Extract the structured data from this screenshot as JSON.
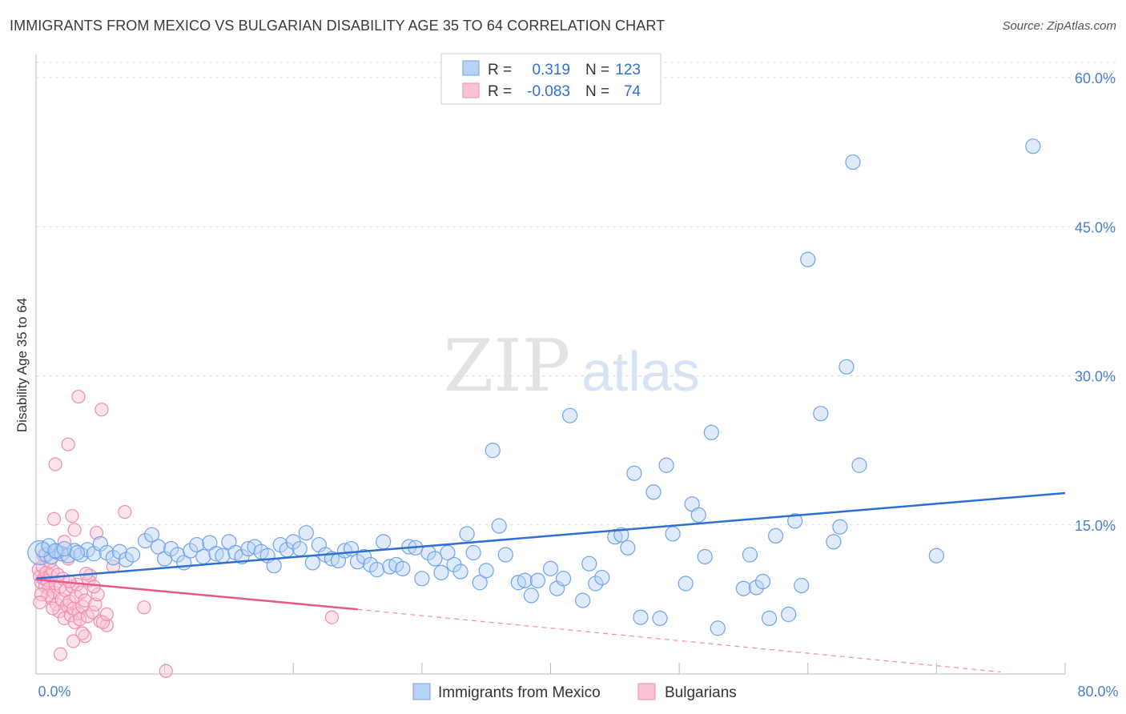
{
  "title": "IMMIGRANTS FROM MEXICO VS BULGARIAN DISABILITY AGE 35 TO 64 CORRELATION CHART",
  "source": "Source: ZipAtlas.com",
  "watermark": {
    "zip": "ZIP",
    "atlas": "atlas"
  },
  "colors": {
    "blue": "#6fa3e8",
    "blue_fill": "#b8d2f5",
    "blue_line": "#2f6fd0",
    "pink": "#f08cb0",
    "pink_fill": "#f9c3d5",
    "pink_line": "#e8588a",
    "axis_label": "#4a7fd0",
    "grid": "#dddddd"
  },
  "legend": {
    "rows": [
      {
        "r_label": "R =",
        "r_value": "0.319",
        "n_label": "N =",
        "n_value": "123"
      },
      {
        "r_label": "R =",
        "r_value": "-0.083",
        "n_label": "N =",
        "n_value": "74"
      }
    ]
  },
  "chart_data": {
    "type": "scatter",
    "title": "IMMIGRANTS FROM MEXICO VS BULGARIAN DISABILITY AGE 35 TO 64 CORRELATION CHART",
    "xlabel": "",
    "ylabel": "Disability Age 35 to 64",
    "xlim": [
      0,
      80
    ],
    "ylim": [
      0,
      60
    ],
    "x_tick_labels": [
      "0.0%",
      "80.0%"
    ],
    "y_ticks": [
      15,
      30,
      45,
      60
    ],
    "y_tick_labels": [
      "15.0%",
      "30.0%",
      "45.0%",
      "60.0%"
    ],
    "grid": true,
    "legend_position": "top-center",
    "series": [
      {
        "name": "Immigrants from Mexico",
        "color": "#6fa3e8",
        "r": 0.319,
        "n": 123,
        "trend": {
          "x": [
            0,
            80
          ],
          "y": [
            9.6,
            18.2
          ]
        },
        "points": [
          [
            0.3,
            12.2
          ],
          [
            0.8,
            12.0
          ],
          [
            1.2,
            11.8
          ],
          [
            1.6,
            12.3
          ],
          [
            2.0,
            12.1
          ],
          [
            2.5,
            11.9
          ],
          [
            3.0,
            12.4
          ],
          [
            3.5,
            12.0
          ],
          [
            4.0,
            12.5
          ],
          [
            4.5,
            12.1
          ],
          [
            5.0,
            13.1
          ],
          [
            5.5,
            12.2
          ],
          [
            6.0,
            11.7
          ],
          [
            6.5,
            12.3
          ],
          [
            7.0,
            11.5
          ],
          [
            7.5,
            12.0
          ],
          [
            8.5,
            13.4
          ],
          [
            9.0,
            14.0
          ],
          [
            9.5,
            12.8
          ],
          [
            10.0,
            11.6
          ],
          [
            10.5,
            12.6
          ],
          [
            11.0,
            12.0
          ],
          [
            11.5,
            11.2
          ],
          [
            12.0,
            12.4
          ],
          [
            12.5,
            13.0
          ],
          [
            13.0,
            11.8
          ],
          [
            13.5,
            13.2
          ],
          [
            14.0,
            12.1
          ],
          [
            14.5,
            11.9
          ],
          [
            15.0,
            13.3
          ],
          [
            15.5,
            12.2
          ],
          [
            16.0,
            11.8
          ],
          [
            16.5,
            12.6
          ],
          [
            17.0,
            12.8
          ],
          [
            17.5,
            12.3
          ],
          [
            18.0,
            11.9
          ],
          [
            18.5,
            10.9
          ],
          [
            19.0,
            13.0
          ],
          [
            19.5,
            12.5
          ],
          [
            20.0,
            13.3
          ],
          [
            20.5,
            12.6
          ],
          [
            21.0,
            14.2
          ],
          [
            21.5,
            11.2
          ],
          [
            22.0,
            13.0
          ],
          [
            22.5,
            12.0
          ],
          [
            23.0,
            11.6
          ],
          [
            23.5,
            11.4
          ],
          [
            24.0,
            12.4
          ],
          [
            24.5,
            12.6
          ],
          [
            25.0,
            11.3
          ],
          [
            25.5,
            11.8
          ],
          [
            26.0,
            11.0
          ],
          [
            26.5,
            10.5
          ],
          [
            27.0,
            13.3
          ],
          [
            27.5,
            10.8
          ],
          [
            28.0,
            11.0
          ],
          [
            28.5,
            10.6
          ],
          [
            29.0,
            12.8
          ],
          [
            29.5,
            12.7
          ],
          [
            30.0,
            9.6
          ],
          [
            30.5,
            12.2
          ],
          [
            31.0,
            11.6
          ],
          [
            31.5,
            10.2
          ],
          [
            32.0,
            12.2
          ],
          [
            32.5,
            11.0
          ],
          [
            33.0,
            10.3
          ],
          [
            33.5,
            14.1
          ],
          [
            34.0,
            12.2
          ],
          [
            34.5,
            9.2
          ],
          [
            35.0,
            10.4
          ],
          [
            35.5,
            22.5
          ],
          [
            36.0,
            14.9
          ],
          [
            36.5,
            12.0
          ],
          [
            37.5,
            9.2
          ],
          [
            38.0,
            9.4
          ],
          [
            38.5,
            7.9
          ],
          [
            39.0,
            9.4
          ],
          [
            40.0,
            10.6
          ],
          [
            40.5,
            8.6
          ],
          [
            41.0,
            9.6
          ],
          [
            41.5,
            26.0
          ],
          [
            42.5,
            7.4
          ],
          [
            43.0,
            11.1
          ],
          [
            43.5,
            9.1
          ],
          [
            44.0,
            9.7
          ],
          [
            45.0,
            13.8
          ],
          [
            45.5,
            14.0
          ],
          [
            46.0,
            12.7
          ],
          [
            46.5,
            20.2
          ],
          [
            47.0,
            5.7
          ],
          [
            48.0,
            18.3
          ],
          [
            48.5,
            5.6
          ],
          [
            49.0,
            21.0
          ],
          [
            49.5,
            14.1
          ],
          [
            50.5,
            9.1
          ],
          [
            51.0,
            17.1
          ],
          [
            51.5,
            16.0
          ],
          [
            52.0,
            11.8
          ],
          [
            52.5,
            24.3
          ],
          [
            53.0,
            4.6
          ],
          [
            55.0,
            8.6
          ],
          [
            55.5,
            12.0
          ],
          [
            56.0,
            8.7
          ],
          [
            56.5,
            9.3
          ],
          [
            57.0,
            5.6
          ],
          [
            57.5,
            13.9
          ],
          [
            58.5,
            6.0
          ],
          [
            59.0,
            15.4
          ],
          [
            59.5,
            8.9
          ],
          [
            60.0,
            41.7
          ],
          [
            61.0,
            26.2
          ],
          [
            62.0,
            13.3
          ],
          [
            62.5,
            14.8
          ],
          [
            63.0,
            30.9
          ],
          [
            63.5,
            51.5
          ],
          [
            64.0,
            21.0
          ],
          [
            70.0,
            11.9
          ],
          [
            77.5,
            53.1
          ],
          [
            0.5,
            12.5
          ],
          [
            1.0,
            12.9
          ],
          [
            1.5,
            12.4
          ],
          [
            2.2,
            12.6
          ],
          [
            3.2,
            12.2
          ]
        ]
      },
      {
        "name": "Bulgarians",
        "color": "#f08cb0",
        "r": -0.083,
        "n": 74,
        "trend_solid": {
          "x": [
            0,
            25
          ],
          "y": [
            9.5,
            6.5
          ]
        },
        "trend_dashed": {
          "x": [
            25,
            75
          ],
          "y": [
            6.5,
            0.2
          ]
        },
        "points": [
          [
            0.2,
            10.5
          ],
          [
            0.3,
            9.8
          ],
          [
            0.4,
            9.2
          ],
          [
            0.5,
            10.8
          ],
          [
            0.6,
            9.6
          ],
          [
            0.7,
            8.8
          ],
          [
            0.8,
            10.2
          ],
          [
            0.9,
            9.4
          ],
          [
            1.0,
            8.6
          ],
          [
            1.1,
            9.9
          ],
          [
            1.2,
            7.6
          ],
          [
            1.3,
            10.4
          ],
          [
            1.4,
            8.2
          ],
          [
            1.5,
            9.1
          ],
          [
            1.6,
            7.0
          ],
          [
            1.7,
            10.0
          ],
          [
            1.8,
            6.3
          ],
          [
            1.9,
            8.8
          ],
          [
            2.0,
            7.5
          ],
          [
            2.1,
            9.6
          ],
          [
            2.2,
            5.6
          ],
          [
            2.3,
            8.4
          ],
          [
            2.4,
            6.9
          ],
          [
            2.5,
            11.6
          ],
          [
            2.6,
            7.3
          ],
          [
            2.7,
            5.9
          ],
          [
            2.8,
            8.8
          ],
          [
            2.9,
            6.6
          ],
          [
            3.0,
            5.2
          ],
          [
            3.1,
            7.8
          ],
          [
            3.2,
            9.0
          ],
          [
            3.3,
            6.1
          ],
          [
            3.4,
            5.5
          ],
          [
            3.5,
            8.2
          ],
          [
            3.6,
            6.8
          ],
          [
            3.8,
            7.4
          ],
          [
            4.0,
            5.8
          ],
          [
            4.2,
            9.9
          ],
          [
            4.4,
            6.2
          ],
          [
            4.6,
            7.0
          ],
          [
            4.8,
            8.0
          ],
          [
            5.0,
            5.3
          ],
          [
            1.5,
            21.1
          ],
          [
            2.5,
            23.1
          ],
          [
            3.3,
            27.9
          ],
          [
            5.1,
            26.6
          ],
          [
            1.4,
            15.6
          ],
          [
            2.8,
            15.9
          ],
          [
            4.7,
            14.2
          ],
          [
            6.9,
            16.3
          ],
          [
            3.0,
            14.5
          ],
          [
            5.5,
            4.9
          ],
          [
            6.0,
            10.8
          ],
          [
            8.4,
            6.7
          ],
          [
            10.1,
            0.3
          ],
          [
            23.0,
            5.7
          ],
          [
            1.9,
            2.0
          ],
          [
            2.9,
            3.3
          ],
          [
            3.8,
            3.8
          ],
          [
            0.6,
            11.9
          ],
          [
            1.1,
            11.3
          ],
          [
            1.7,
            12.2
          ],
          [
            2.2,
            13.3
          ],
          [
            0.9,
            7.9
          ],
          [
            3.6,
            4.1
          ],
          [
            5.2,
            5.2
          ],
          [
            4.1,
            9.4
          ],
          [
            0.4,
            8.0
          ],
          [
            1.3,
            6.6
          ],
          [
            2.6,
            9.3
          ],
          [
            3.9,
            10.1
          ],
          [
            5.5,
            6.0
          ],
          [
            4.5,
            8.8
          ],
          [
            0.3,
            7.2
          ]
        ]
      }
    ]
  }
}
